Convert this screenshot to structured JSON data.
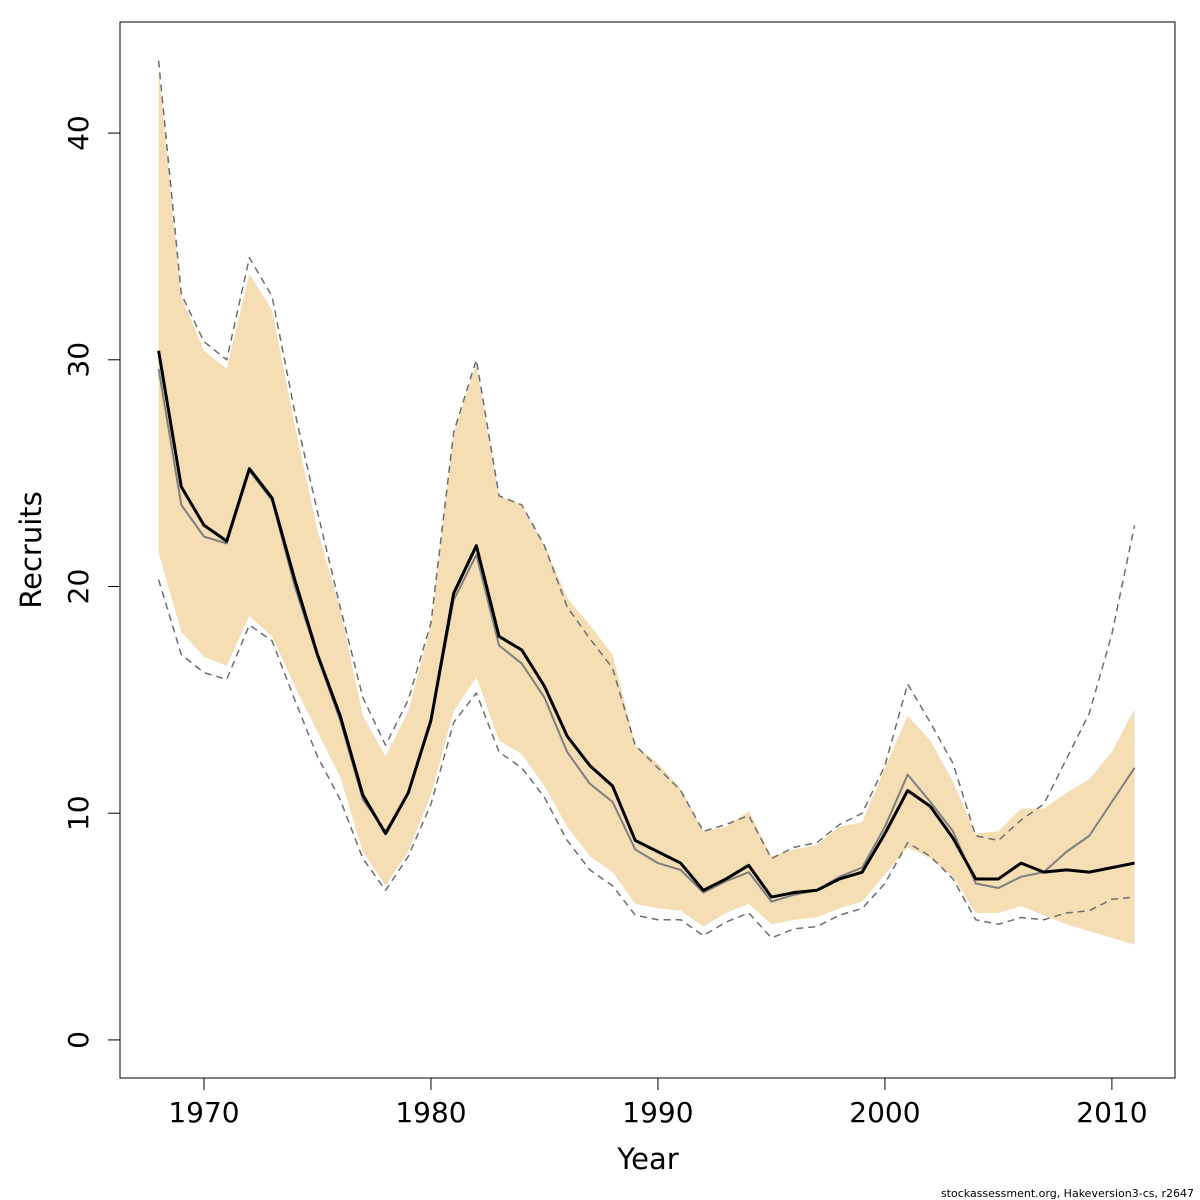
{
  "chart_data": {
    "type": "line",
    "xlabel": "Year",
    "ylabel": "Recruits",
    "caption": "stockassessment.org, Hakeversion3-cs, r2647",
    "x": [
      1968,
      1969,
      1970,
      1971,
      1972,
      1973,
      1974,
      1975,
      1976,
      1977,
      1978,
      1979,
      1980,
      1981,
      1982,
      1983,
      1984,
      1985,
      1986,
      1987,
      1988,
      1989,
      1990,
      1991,
      1992,
      1993,
      1994,
      1995,
      1996,
      1997,
      1998,
      1999,
      2000,
      2001,
      2002,
      2003,
      2004,
      2005,
      2006,
      2007,
      2008,
      2009,
      2010,
      2011
    ],
    "xlim": [
      1966.3,
      2012.78
    ],
    "ylim": [
      -1.68,
      44.9
    ],
    "xticks": [
      1970,
      1980,
      1990,
      2000,
      2010
    ],
    "yticks": [
      0,
      10,
      20,
      30,
      40
    ],
    "band": {
      "color": "#f5deb3",
      "upper": [
        42.8,
        32.8,
        30.4,
        29.6,
        33.8,
        32.2,
        27.1,
        22.5,
        19.0,
        14.3,
        12.5,
        14.5,
        18.3,
        26.8,
        29.8,
        24.0,
        23.6,
        21.8,
        19.5,
        18.3,
        17.0,
        13.0,
        12.2,
        11.1,
        9.2,
        9.4,
        10.1,
        8.1,
        8.4,
        8.6,
        9.4,
        9.6,
        12.0,
        14.3,
        13.2,
        11.4,
        9.1,
        9.2,
        10.2,
        10.2,
        10.9,
        11.5,
        12.7,
        14.6
      ],
      "lower": [
        21.5,
        18.0,
        16.9,
        16.5,
        18.7,
        17.8,
        15.6,
        13.6,
        11.6,
        8.3,
        6.8,
        8.3,
        10.8,
        14.5,
        16.0,
        13.2,
        12.6,
        11.2,
        9.4,
        8.1,
        7.4,
        6.0,
        5.8,
        5.7,
        5.0,
        5.6,
        6.0,
        5.1,
        5.3,
        5.4,
        5.8,
        6.1,
        7.3,
        8.5,
        8.0,
        7.2,
        5.6,
        5.6,
        5.9,
        5.5,
        5.1,
        4.8,
        4.5,
        4.2
      ]
    },
    "series": [
      {
        "color": "#6e6e6e",
        "dashed": true,
        "width": 1.5,
        "values": [
          43.2,
          32.9,
          30.8,
          30.0,
          34.5,
          32.8,
          27.7,
          23.3,
          19.1,
          15.1,
          13.0,
          15.0,
          18.4,
          26.8,
          30.0,
          24.0,
          23.6,
          21.8,
          19.1,
          17.7,
          16.4,
          13.0,
          12.0,
          11.0,
          9.2,
          9.5,
          9.9,
          8.0,
          8.5,
          8.7,
          9.5,
          10.0,
          12.1,
          15.7,
          14.0,
          12.2,
          9.0,
          8.8,
          9.7,
          10.4,
          12.4,
          14.4,
          17.9,
          22.7
        ]
      },
      {
        "color": "#6e6e6e",
        "dashed": true,
        "width": 1.5,
        "values": [
          20.3,
          17.0,
          16.2,
          15.9,
          18.3,
          17.6,
          15.0,
          12.5,
          10.6,
          8.0,
          6.6,
          8.1,
          10.4,
          14.0,
          15.3,
          12.7,
          12.0,
          10.7,
          8.8,
          7.5,
          6.8,
          5.5,
          5.3,
          5.3,
          4.6,
          5.2,
          5.6,
          4.5,
          4.9,
          5.0,
          5.5,
          5.8,
          6.9,
          8.7,
          8.1,
          7.1,
          5.3,
          5.1,
          5.4,
          5.3,
          5.6,
          5.7,
          6.2,
          6.3
        ]
      },
      {
        "color": "#7f7f7f",
        "dashed": false,
        "width": 2,
        "values": [
          29.6,
          23.6,
          22.2,
          21.9,
          25.1,
          23.8,
          20.0,
          16.9,
          14.1,
          10.6,
          9.2,
          10.9,
          14.0,
          19.4,
          21.4,
          17.4,
          16.6,
          15.1,
          12.7,
          11.3,
          10.5,
          8.4,
          7.8,
          7.5,
          6.5,
          7.0,
          7.4,
          6.1,
          6.4,
          6.6,
          7.2,
          7.6,
          9.4,
          11.7,
          10.5,
          9.2,
          6.9,
          6.7,
          7.2,
          7.4,
          8.3,
          9.0,
          10.5,
          12.0
        ]
      },
      {
        "color": "#000000",
        "dashed": false,
        "width": 3,
        "values": [
          30.4,
          24.4,
          22.7,
          22.0,
          25.2,
          23.9,
          20.3,
          17.0,
          14.3,
          10.8,
          9.1,
          10.9,
          14.1,
          19.7,
          21.8,
          17.8,
          17.2,
          15.6,
          13.4,
          12.1,
          11.2,
          8.8,
          8.3,
          7.8,
          6.6,
          7.1,
          7.7,
          6.3,
          6.5,
          6.6,
          7.1,
          7.4,
          9.1,
          11.0,
          10.3,
          8.9,
          7.1,
          7.1,
          7.8,
          7.4,
          7.5,
          7.4,
          7.6,
          7.8
        ]
      }
    ]
  }
}
